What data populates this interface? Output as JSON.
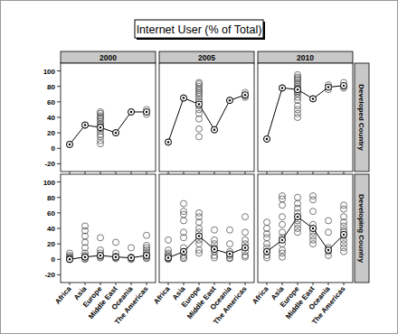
{
  "chart_data": {
    "type": "scatter",
    "title": "Internet User (% of Total)",
    "columns": [
      "2000",
      "2005",
      "2010"
    ],
    "rows": [
      "Developed Country",
      "Developing Country"
    ],
    "categories": [
      "Africa",
      "Asia",
      "Europe",
      "Middle East",
      "Oceania",
      "The Americas"
    ],
    "ylim": [
      -30,
      110
    ],
    "yticks": [
      -20,
      0,
      20,
      40,
      60,
      80,
      100
    ],
    "panels": [
      [
        {
          "series": [
            {
              "type": "scatter",
              "marker": "circle",
              "values": [
                [
                  5
                ],
                [
                  30
                ],
                [
                  47,
                  45,
                  42,
                  40,
                  38,
                  35,
                  32,
                  30,
                  28,
                  25,
                  22,
                  18,
                  15,
                  10,
                  6
                ],
                [
                  20
                ],
                [
                  47
                ],
                [
                  50,
                  44
                ]
              ]
            },
            {
              "type": "line",
              "marker": "dot-circle",
              "values": [
                5,
                30,
                27,
                20,
                47,
                47
              ]
            }
          ]
        },
        {
          "series": [
            {
              "type": "scatter",
              "marker": "circle",
              "values": [
                [
                  8
                ],
                [
                  65
                ],
                [
                  85,
                  83,
                  80,
                  77,
                  75,
                  72,
                  70,
                  67,
                  63,
                  60,
                  55,
                  50,
                  45,
                  38,
                  25,
                  15
                ],
                [
                  24
                ],
                [
                  62
                ],
                [
                  72,
                  68,
                  66
                ]
              ]
            },
            {
              "type": "line",
              "marker": "dot-circle",
              "values": [
                8,
                65,
                57,
                24,
                62,
                69
              ]
            }
          ]
        },
        {
          "series": [
            {
              "type": "scatter",
              "marker": "circle",
              "values": [
                [
                  12
                ],
                [
                  78
                ],
                [
                  95,
                  92,
                  90,
                  88,
                  85,
                  83,
                  80,
                  78,
                  76,
                  74,
                  72,
                  70,
                  66,
                  62,
                  55,
                  50,
                  45,
                  40
                ],
                [
                  64
                ],
                [
                  82,
                  76
                ],
                [
                  85,
                  80,
                  78
                ]
              ]
            },
            {
              "type": "line",
              "marker": "dot-circle",
              "values": [
                12,
                78,
                76,
                64,
                79,
                81
              ]
            }
          ]
        }
      ],
      [
        {
          "series": [
            {
              "type": "scatter",
              "marker": "circle",
              "values": [
                [
                  8,
                  5,
                  3,
                  2,
                  1,
                  0,
                  0,
                  0
                ],
                [
                  43,
                  37,
                  30,
                  22,
                  15,
                  8,
                  5,
                  3,
                  1,
                  0
                ],
                [
                  28,
                  12,
                  8,
                  5,
                  3,
                  2
                ],
                [
                  22,
                  8,
                  4,
                  2,
                  1
                ],
                [
                  15,
                  3,
                  1,
                  0
                ],
                [
                  31,
                  18,
                  15,
                  12,
                  9,
                  6,
                  4,
                  2,
                  1
                ]
              ]
            },
            {
              "type": "line",
              "marker": "dot-circle",
              "values": [
                0,
                3,
                5,
                3,
                2,
                5
              ]
            }
          ]
        },
        {
          "series": [
            {
              "type": "scatter",
              "marker": "circle",
              "values": [
                [
                  25,
                  12,
                  8,
                  6,
                  4,
                  2,
                  1,
                  0
                ],
                [
                  72,
                  62,
                  58,
                  50,
                  35,
                  28,
                  15,
                  10,
                  5,
                  2,
                  1
                ],
                [
                  60,
                  55,
                  48,
                  40,
                  35,
                  30,
                  25,
                  20,
                  12,
                  8
                ],
                [
                  38,
                  25,
                  20,
                  15,
                  10,
                  5,
                  2
                ],
                [
                  38,
                  20,
                  10,
                  5,
                  2,
                  1
                ],
                [
                  55,
                  35,
                  25,
                  20,
                  15,
                  10,
                  5,
                  3
                ]
              ]
            },
            {
              "type": "line",
              "marker": "dot-circle",
              "values": [
                2,
                10,
                30,
                13,
                7,
                15
              ]
            }
          ]
        },
        {
          "series": [
            {
              "type": "scatter",
              "marker": "circle",
              "values": [
                [
                  48,
                  40,
                  33,
                  28,
                  20,
                  15,
                  10,
                  5,
                  2
                ],
                [
                  82,
                  78,
                  70,
                  55,
                  45,
                  35,
                  28,
                  20,
                  12,
                  8,
                  3
                ],
                [
                  80,
                  72,
                  66,
                  60,
                  55,
                  50,
                  45,
                  40,
                  35
                ],
                [
                  82,
                  77,
                  62,
                  45,
                  40,
                  35,
                  30,
                  25,
                  20
                ],
                [
                  50,
                  35,
                  15,
                  10,
                  5
                ],
                [
                  70,
                  65,
                  55,
                  48,
                  43,
                  38,
                  35,
                  30,
                  25,
                  20,
                  15,
                  10
                ]
              ]
            },
            {
              "type": "line",
              "marker": "dot-circle",
              "values": [
                10,
                25,
                55,
                40,
                12,
                32
              ]
            }
          ]
        }
      ]
    ]
  }
}
